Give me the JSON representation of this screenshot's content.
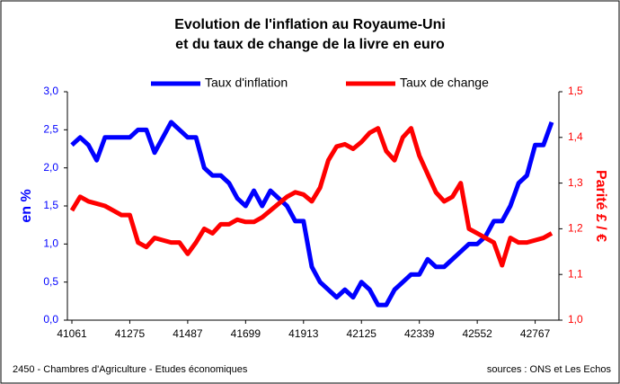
{
  "chart_data": {
    "type": "line",
    "title": [
      "Evolution de l'inflation au Royaume-Uni",
      "et du taux de change de la livre en euro"
    ],
    "categories": [
      "41061",
      null,
      null,
      null,
      null,
      null,
      null,
      "41275",
      null,
      null,
      null,
      null,
      null,
      null,
      "41487",
      null,
      null,
      null,
      null,
      null,
      null,
      "41699",
      null,
      null,
      null,
      null,
      null,
      null,
      "41913",
      null,
      null,
      null,
      null,
      null,
      null,
      "42125",
      null,
      null,
      null,
      null,
      null,
      null,
      "42339",
      null,
      null,
      null,
      null,
      null,
      null,
      "42552",
      null,
      null,
      null,
      null,
      null,
      null,
      "42767",
      null,
      null
    ],
    "series": [
      {
        "name": "Taux d'inflation",
        "color": "#0000ff",
        "axis": "y",
        "values": [
          2.3,
          2.4,
          2.3,
          2.1,
          2.4,
          2.4,
          2.4,
          2.4,
          2.5,
          2.5,
          2.2,
          2.4,
          2.6,
          2.5,
          2.4,
          2.4,
          2.0,
          1.9,
          1.9,
          1.8,
          1.6,
          1.5,
          1.7,
          1.5,
          1.7,
          1.6,
          1.5,
          1.3,
          1.3,
          0.7,
          0.5,
          0.4,
          0.3,
          0.4,
          0.3,
          0.5,
          0.4,
          0.2,
          0.2,
          0.4,
          0.5,
          0.6,
          0.6,
          0.8,
          0.7,
          0.7,
          0.8,
          0.9,
          1.0,
          1.0,
          1.1,
          1.3,
          1.3,
          1.5,
          1.8,
          1.9,
          2.3,
          2.3,
          2.6
        ]
      },
      {
        "name": "Taux de change",
        "color": "#ff0000",
        "axis": "y2",
        "values": [
          1.24,
          1.27,
          1.26,
          1.255,
          1.25,
          1.24,
          1.23,
          1.23,
          1.17,
          1.16,
          1.18,
          1.175,
          1.17,
          1.17,
          1.145,
          1.17,
          1.2,
          1.19,
          1.21,
          1.21,
          1.22,
          1.215,
          1.215,
          1.225,
          1.24,
          1.255,
          1.27,
          1.28,
          1.275,
          1.26,
          1.29,
          1.35,
          1.38,
          1.385,
          1.375,
          1.39,
          1.41,
          1.42,
          1.37,
          1.35,
          1.4,
          1.42,
          1.36,
          1.32,
          1.28,
          1.26,
          1.27,
          1.3,
          1.2,
          1.19,
          1.18,
          1.17,
          1.12,
          1.18,
          1.17,
          1.17,
          1.175,
          1.18,
          1.19
        ]
      }
    ],
    "ylabel": "en %",
    "y2label": "Parité £ / €",
    "ylim": [
      0,
      3
    ],
    "yticks": [
      {
        "value": 0,
        "label": "0,0"
      },
      {
        "value": 0.5,
        "label": "0,5"
      },
      {
        "value": 1,
        "label": "1,0"
      },
      {
        "value": 1.5,
        "label": "1,5"
      },
      {
        "value": 2,
        "label": "2,0"
      },
      {
        "value": 2.5,
        "label": "2,5"
      },
      {
        "value": 3,
        "label": "3,0"
      }
    ],
    "y2lim": [
      1,
      1.5
    ],
    "y2ticks": [
      {
        "value": 1,
        "label": "1,0"
      },
      {
        "value": 1.1,
        "label": "1,1"
      },
      {
        "value": 1.2,
        "label": "1,2"
      },
      {
        "value": 1.3,
        "label": "1,3"
      },
      {
        "value": 1.4,
        "label": "1,4"
      },
      {
        "value": 1.5,
        "label": "1,5"
      }
    ],
    "legend": "top",
    "footer_left": "2450 - Chambres d'Agriculture - Etudes économiques",
    "footer_right": "sources : ONS et Les Echos"
  }
}
